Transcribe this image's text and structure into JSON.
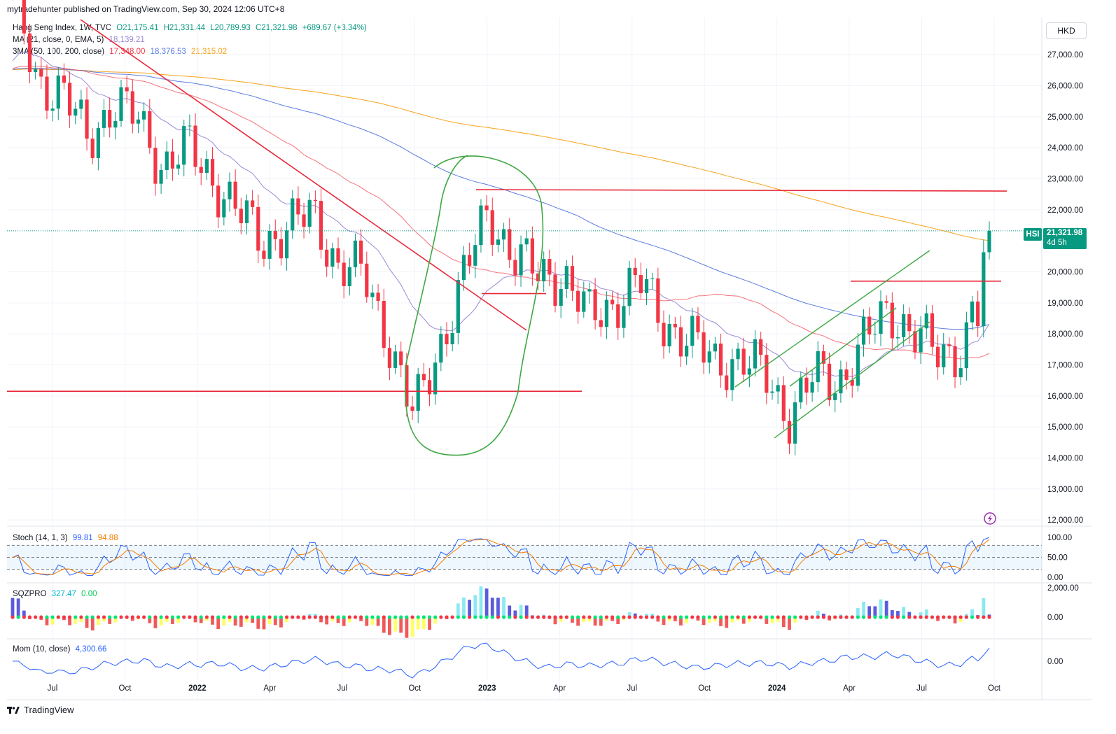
{
  "header": {
    "published_by": "mytradehunter published on TradingView.com, Sep 30, 2024 12:06 UTC+8"
  },
  "symbol_legend": {
    "name": "Hang Seng Index, 1W, TVC",
    "open": "O21,175.41",
    "high": "H21,331.44",
    "low": "L20,789.93",
    "close": "C21,321.98",
    "change": "+689.67 (+3.34%)"
  },
  "ma_legend": {
    "label": "MA (21, close, 0, EMA, 5)",
    "value": "18,139.21"
  },
  "sma3_legend": {
    "label": "3MA (50, 100, 200, close)",
    "v50": "17,348.00",
    "v100": "18,376.53",
    "v200": "21,315.02"
  },
  "currency": "HKD",
  "price_label": {
    "symbol": "HSI",
    "value": "21,321.98",
    "countdown": "4d 5h"
  },
  "stoch_legend": {
    "label": "Stoch (14, 1, 3)",
    "k": "99.81",
    "d": "94.88"
  },
  "sqz_legend": {
    "label": "SQZPRO",
    "v1": "327.47",
    "v2": "0.00"
  },
  "mom_legend": {
    "label": "Mom (10, close)",
    "value": "4,300.66"
  },
  "price_axis_ticks": [
    "27,000.00",
    "26,000.00",
    "25,000.00",
    "24,000.00",
    "23,000.00",
    "22,000.00",
    "20,000.00",
    "19,000.00",
    "18,000.00",
    "17,000.00",
    "16,000.00",
    "15,000.00",
    "14,000.00",
    "13,000.00",
    "12,000.00"
  ],
  "stoch_axis_ticks": [
    "100.00",
    "50.00",
    "0.00"
  ],
  "sqz_axis_ticks": [
    "2,000.00",
    "0.00"
  ],
  "mom_axis_ticks": [
    "0.00"
  ],
  "time_axis_ticks": [
    {
      "label": "Jul",
      "bold": false
    },
    {
      "label": "Oct",
      "bold": false
    },
    {
      "label": "2022",
      "bold": true
    },
    {
      "label": "Apr",
      "bold": false
    },
    {
      "label": "Jul",
      "bold": false
    },
    {
      "label": "Oct",
      "bold": false
    },
    {
      "label": "2023",
      "bold": true
    },
    {
      "label": "Apr",
      "bold": false
    },
    {
      "label": "Jul",
      "bold": false
    },
    {
      "label": "Oct",
      "bold": false
    },
    {
      "label": "2024",
      "bold": true
    },
    {
      "label": "Apr",
      "bold": false
    },
    {
      "label": "Jul",
      "bold": false
    },
    {
      "label": "Oct",
      "bold": false
    }
  ],
  "footer": {
    "brand": "TradingView"
  },
  "colors": {
    "up": "#089981",
    "down": "#f23645",
    "ema21": "#9c88d6",
    "sma50": "#f23645",
    "sma100": "#5b7ce0",
    "sma200": "#f7a21b",
    "annotation_red": "#e8293a",
    "annotation_green": "#3ea843"
  },
  "chart_data": {
    "type": "candlestick",
    "timeframe": "1W",
    "currency": "HKD",
    "x_range": [
      "2021-06",
      "2024-10"
    ],
    "y_range": [
      11800,
      28200
    ],
    "series_close_approx": [
      {
        "t": "2021-06",
        "v": 28800
      },
      {
        "t": "2021-07",
        "v": 26200
      },
      {
        "t": "2021-08",
        "v": 25700
      },
      {
        "t": "2021-09",
        "v": 24300
      },
      {
        "t": "2021-10",
        "v": 25400
      },
      {
        "t": "2021-11",
        "v": 24900
      },
      {
        "t": "2021-12",
        "v": 23400
      },
      {
        "t": "2022-01",
        "v": 24000
      },
      {
        "t": "2022-02",
        "v": 23000
      },
      {
        "t": "2022-03",
        "v": 21900
      },
      {
        "t": "2022-04",
        "v": 21000
      },
      {
        "t": "2022-05",
        "v": 21400
      },
      {
        "t": "2022-06",
        "v": 21900
      },
      {
        "t": "2022-07",
        "v": 20200
      },
      {
        "t": "2022-08",
        "v": 19900
      },
      {
        "t": "2022-09",
        "v": 17900
      },
      {
        "t": "2022-10",
        "v": 15300
      },
      {
        "t": "2022-11",
        "v": 17500
      },
      {
        "t": "2022-12",
        "v": 19800
      },
      {
        "t": "2023-01",
        "v": 22000
      },
      {
        "t": "2023-02",
        "v": 20500
      },
      {
        "t": "2023-03",
        "v": 19900
      },
      {
        "t": "2023-04",
        "v": 19900
      },
      {
        "t": "2023-05",
        "v": 18500
      },
      {
        "t": "2023-06",
        "v": 19000
      },
      {
        "t": "2023-07",
        "v": 19700
      },
      {
        "t": "2023-08",
        "v": 18400
      },
      {
        "t": "2023-09",
        "v": 17800
      },
      {
        "t": "2023-10",
        "v": 17100
      },
      {
        "t": "2023-11",
        "v": 17200
      },
      {
        "t": "2023-12",
        "v": 16700
      },
      {
        "t": "2024-01",
        "v": 15400
      },
      {
        "t": "2024-02",
        "v": 16600
      },
      {
        "t": "2024-03",
        "v": 16500
      },
      {
        "t": "2024-04",
        "v": 17700
      },
      {
        "t": "2024-05",
        "v": 18800
      },
      {
        "t": "2024-06",
        "v": 18000
      },
      {
        "t": "2024-07",
        "v": 17300
      },
      {
        "t": "2024-08",
        "v": 17600
      },
      {
        "t": "2024-09",
        "v": 21321.98
      }
    ],
    "last_close": 21321.98,
    "annotations": {
      "horizontal_levels": [
        22650,
        19700,
        19300,
        16150
      ],
      "downtrend_line": {
        "from": {
          "t": "2021-06",
          "v": 28500
        },
        "to": {
          "t": "2023-02",
          "v": 18150
        }
      },
      "rising_channel": true,
      "ellipse_marked_region": {
        "from": "2022-10",
        "to": "2023-03"
      }
    }
  }
}
